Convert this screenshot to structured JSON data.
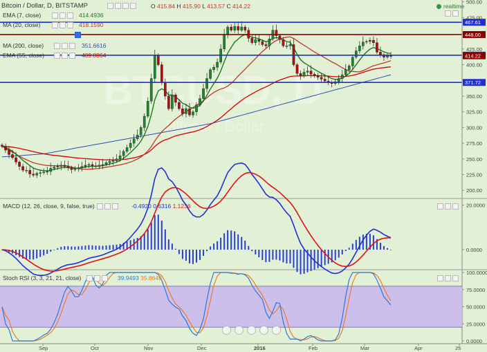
{
  "header": {
    "title": "Bitcoin / Dollar, D, BITSTAMP",
    "ohlc_o_label": "O",
    "ohlc_o": "415.84",
    "ohlc_h_label": "H",
    "ohlc_h": "415.90",
    "ohlc_l_label": "L",
    "ohlc_l": "413.57",
    "ohlc_c_label": "C",
    "ohlc_c": "414.22",
    "realtime": "realtime"
  },
  "indicators": [
    {
      "name": "EMA (7, close)",
      "value": "414.4936",
      "color": "#1a7a1a"
    },
    {
      "name": "MA (20, close)",
      "value": "418.1590",
      "color": "#c0392b"
    },
    {
      "name": "MA (200, close)",
      "value": "351.6616",
      "color": "#2a4db5"
    },
    {
      "name": "EMA (55, close)",
      "value": "409.8864",
      "color": "#d40000"
    }
  ],
  "macd": {
    "label": "MACD (12, 26, close, 9, false, true)",
    "hist": "-0.4920",
    "macd": "0.6316",
    "signal": "1.1236"
  },
  "rsi": {
    "label": "Stoch RSI (3, 3, 21, 21, close)",
    "k": "39.9493",
    "d": "35.8646"
  },
  "watermark": {
    "big": "BTCUSD, D",
    "small": "Bitcoin / Dollar"
  },
  "colors": {
    "bg": "#e2f0d6",
    "up": "#1b8a2a",
    "down": "#b01010",
    "hline": "#1f2fd6",
    "resist": "#8b0000",
    "rsi_band": "#c9b6ee"
  },
  "chart_data": [
    {
      "type": "candlestick",
      "x_tick_labels": [
        "Sep",
        "Oct",
        "Nov",
        "Dec",
        "2016",
        "Feb",
        "Mar",
        "Apr",
        "25"
      ],
      "y_tick_labels": [
        "500.00",
        "475.00",
        "450.00",
        "425.00",
        "400.00",
        "375.00",
        "350.00",
        "325.00",
        "300.00",
        "275.00",
        "250.00",
        "225.00",
        "200.00"
      ],
      "ylim": [
        187,
        503
      ],
      "price_tags": [
        {
          "value": 467.61,
          "label": "467.61",
          "color": "#1f2fd6"
        },
        {
          "value": 448.0,
          "label": "448.00",
          "color": "#8b0000"
        },
        {
          "value": 415.16,
          "label": "415.16",
          "color": "#1f2fd6"
        },
        {
          "value": 414.22,
          "label": "414.22",
          "color": "#8b0000"
        },
        {
          "value": 371.72,
          "label": "371.72",
          "color": "#1f2fd6"
        }
      ],
      "hlines": [
        {
          "value": 467.61,
          "color": "#1f2fd6"
        },
        {
          "value": 448.0,
          "color": "#8b0000"
        },
        {
          "value": 415.16,
          "color": "#1f2fd6"
        },
        {
          "value": 371.72,
          "color": "#1f2fd6"
        }
      ],
      "closes": [
        270,
        264,
        257,
        252,
        245,
        238,
        232,
        232,
        226,
        224,
        227,
        228,
        229,
        230,
        235,
        237,
        238,
        240,
        238,
        236,
        233,
        234,
        236,
        238,
        240,
        241,
        239,
        238,
        240,
        241,
        244,
        246,
        247,
        250,
        255,
        262,
        268,
        275,
        282,
        288,
        300,
        318,
        342,
        378,
        415,
        400,
        372,
        350,
        330,
        352,
        340,
        330,
        322,
        330,
        320,
        325,
        336,
        346,
        362,
        378,
        392,
        396,
        404,
        425,
        448,
        460,
        455,
        461,
        455,
        460,
        455,
        442,
        435,
        440,
        437,
        432,
        430,
        441,
        455,
        446,
        440,
        430,
        430,
        432,
        400,
        386,
        382,
        388,
        390,
        385,
        382,
        380,
        377,
        374,
        372,
        370,
        373,
        378,
        384,
        392,
        398,
        412,
        422,
        430,
        436,
        437,
        439,
        435,
        420,
        416,
        412,
        414,
        414.22
      ],
      "series": [
        {
          "name": "EMA (7, close)",
          "color": "#1a7a1a"
        },
        {
          "name": "MA (20, close)",
          "color": "#c0392b"
        },
        {
          "name": "MA (200, close)",
          "color": "#2a4db5"
        },
        {
          "name": "EMA (55, close)",
          "color": "#d40000"
        }
      ]
    },
    {
      "type": "bar",
      "title": "MACD (12, 26, close, 9, false, true)",
      "y_tick_labels": [
        "20.0000",
        "0.0000"
      ],
      "ylim": [
        -9,
        23
      ],
      "series": [
        {
          "name": "MACD",
          "color": "#1f2fd6"
        },
        {
          "name": "Signal",
          "color": "#e01010"
        },
        {
          "name": "Histogram",
          "color": "#2a3fd0"
        }
      ]
    },
    {
      "type": "line",
      "title": "Stoch RSI (3, 3, 21, 21, close)",
      "y_tick_labels": [
        "100.0000",
        "75.0000",
        "50.0000",
        "25.0000",
        "0.0000"
      ],
      "ylim": [
        0,
        100
      ],
      "band": [
        20,
        80
      ],
      "series": [
        {
          "name": "K",
          "color": "#2b79d8"
        },
        {
          "name": "D",
          "color": "#ef7a24"
        }
      ]
    }
  ]
}
